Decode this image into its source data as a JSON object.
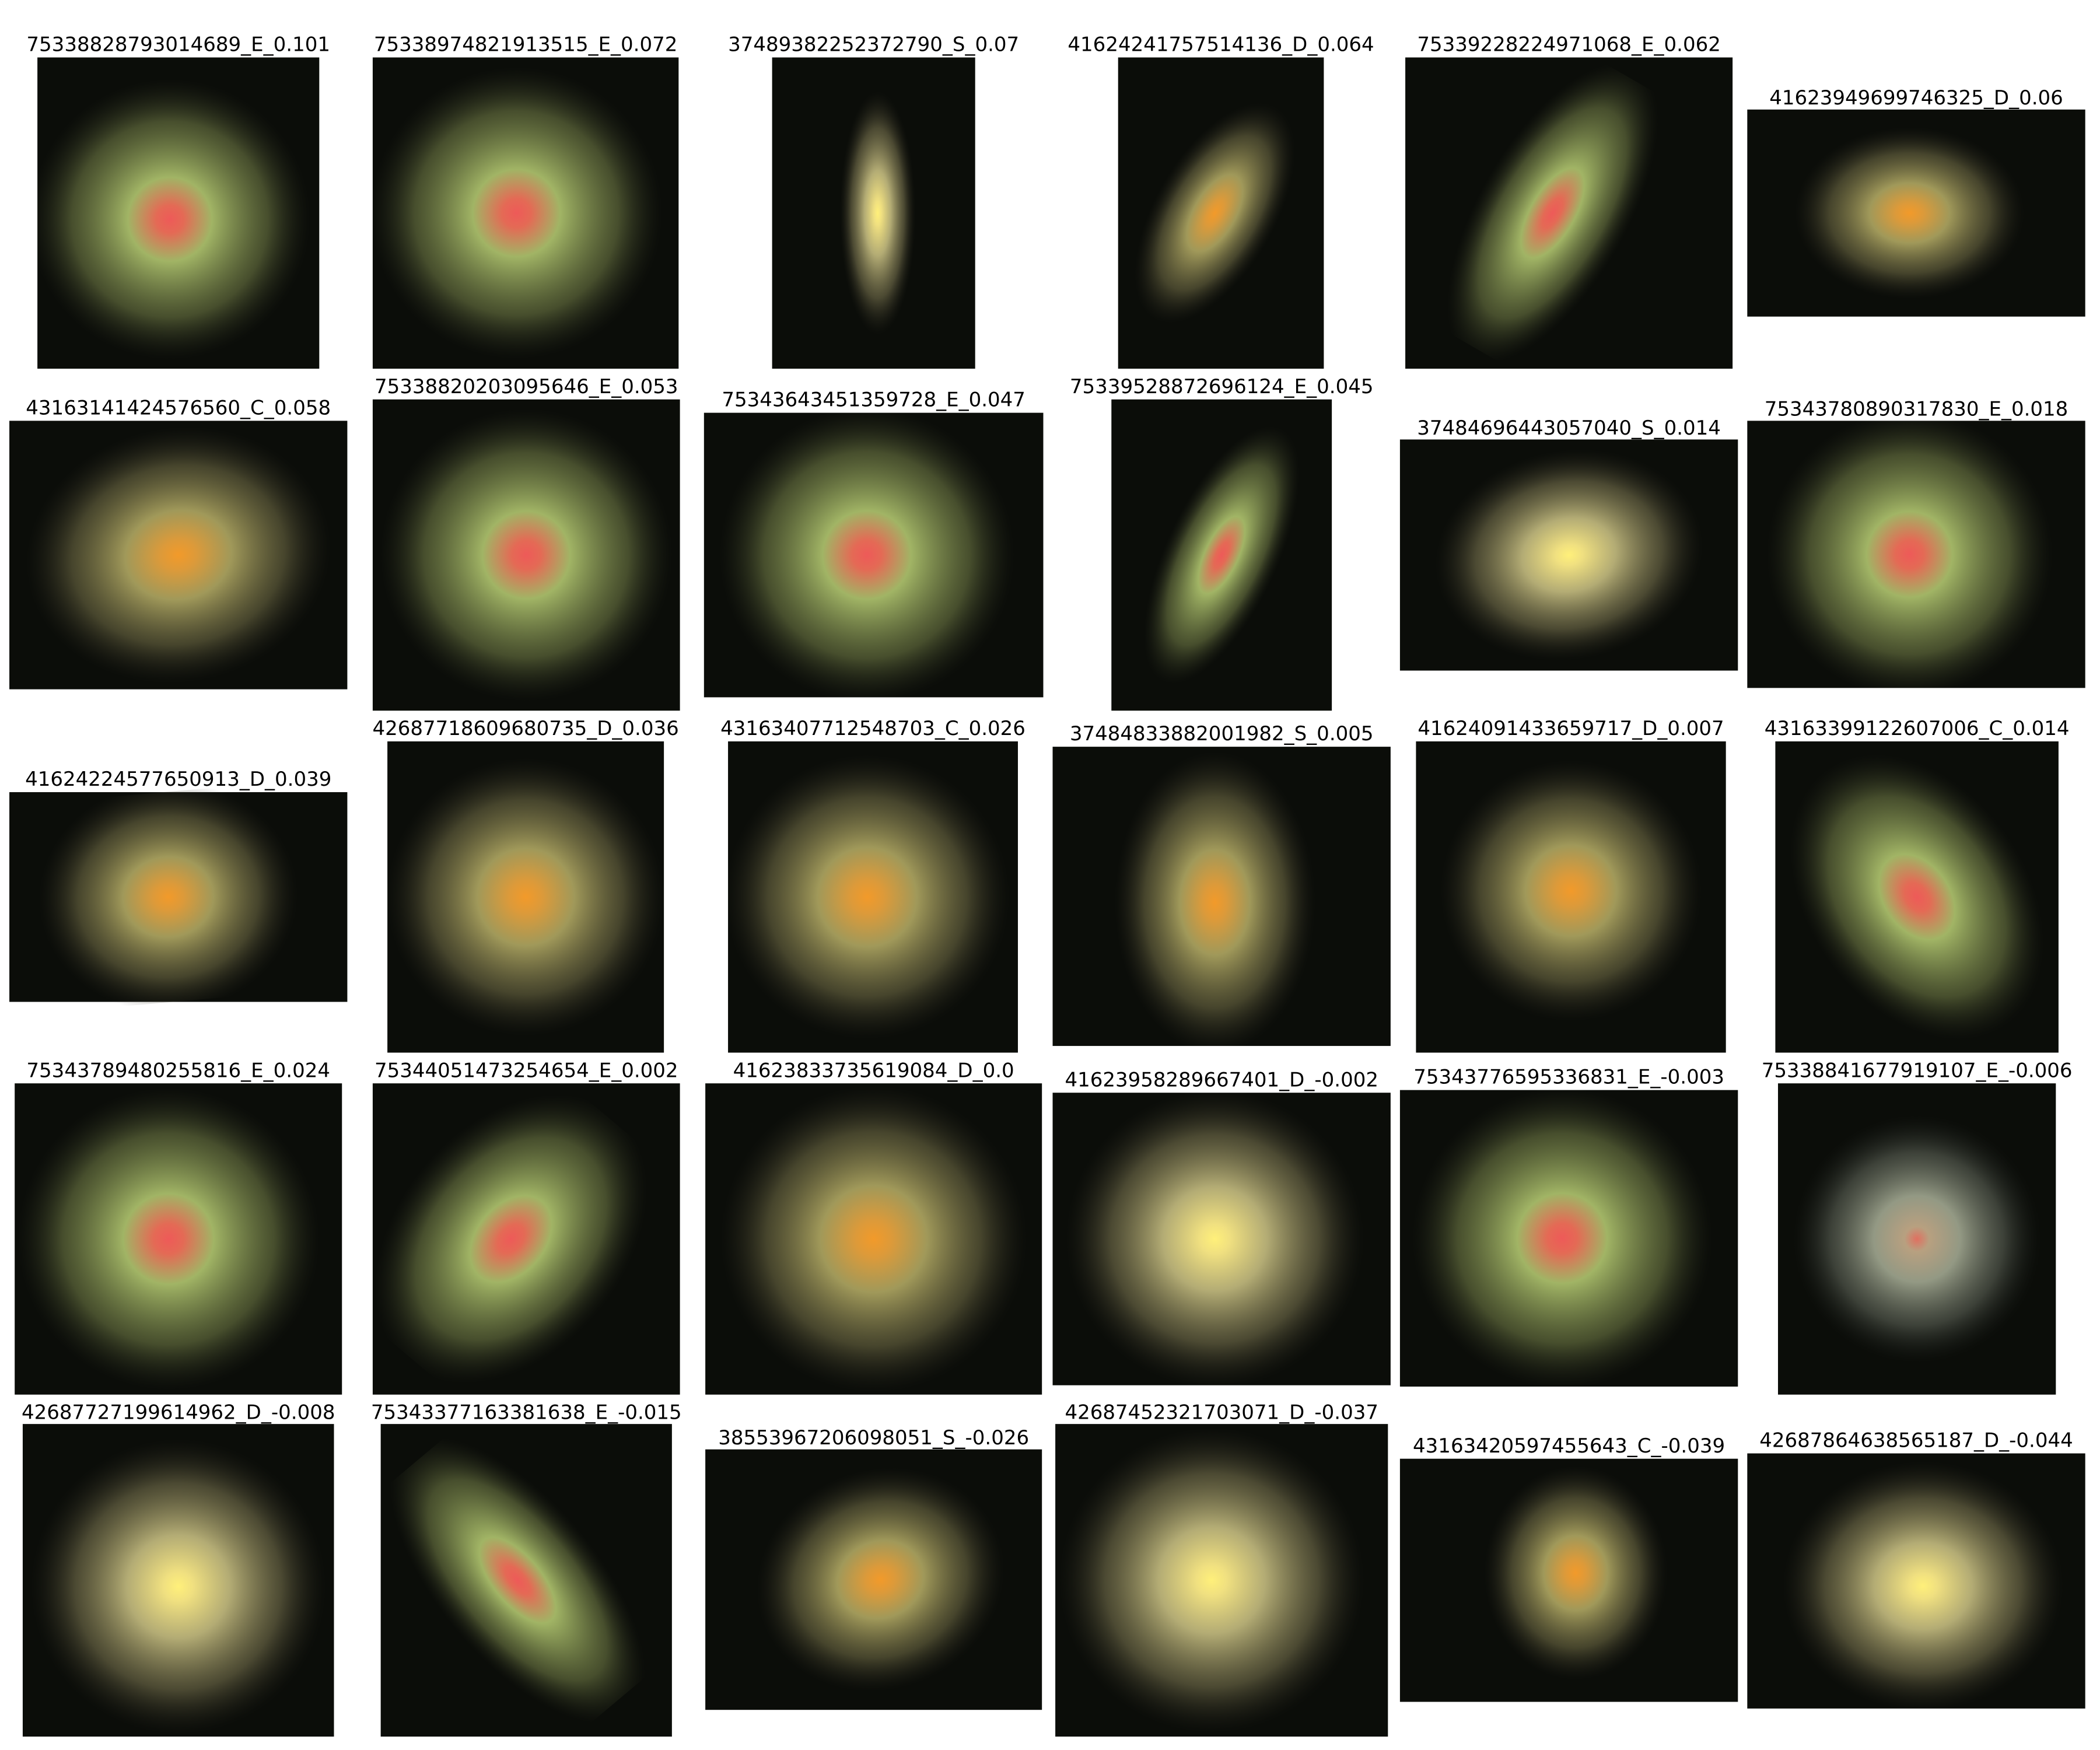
{
  "panels": [
    {
      "label": "75338828793014689_E_0.101"
    },
    {
      "label": "75338974821913515_E_0.072"
    },
    {
      "label": "37489382252372790_S_0.07"
    },
    {
      "label": "41624241757514136_D_0.064"
    },
    {
      "label": "75339228224971068_E_0.062"
    },
    {
      "label": "41623949699746325_D_0.06"
    },
    {
      "label": "43163141424576560_C_0.058"
    },
    {
      "label": "75338820203095646_E_0.053"
    },
    {
      "label": "75343643451359728_E_0.047"
    },
    {
      "label": "75339528872696124_E_0.045"
    },
    {
      "label": "37484696443057040_S_0.014"
    },
    {
      "label": "75343780890317830_E_0.018"
    },
    {
      "label": "41624224577650913_D_0.039"
    },
    {
      "label": "42687718609680735_D_0.036"
    },
    {
      "label": "43163407712548703_C_0.026"
    },
    {
      "label": "37484833882001982_S_0.005"
    },
    {
      "label": "41624091433659717_D_0.007"
    },
    {
      "label": "43163399122607006_C_0.014"
    },
    {
      "label": "75343789480255816_E_0.024"
    },
    {
      "label": "75344051473254654_E_0.002"
    },
    {
      "label": "41623833735619084_D_0.0"
    },
    {
      "label": "41623958289667401_D_-0.002"
    },
    {
      "label": "75343776595336831_E_-0.003"
    },
    {
      "label": "75338841677919107_E_-0.006"
    },
    {
      "label": "42687727199614962_D_-0.008"
    },
    {
      "label": "75343377163381638_E_-0.015"
    },
    {
      "label": "38553967206098051_S_-0.026"
    },
    {
      "label": "42687452321703071_D_-0.037"
    },
    {
      "label": "43163420597455643_C_-0.039"
    },
    {
      "label": "42687864638565187_D_-0.044"
    }
  ]
}
